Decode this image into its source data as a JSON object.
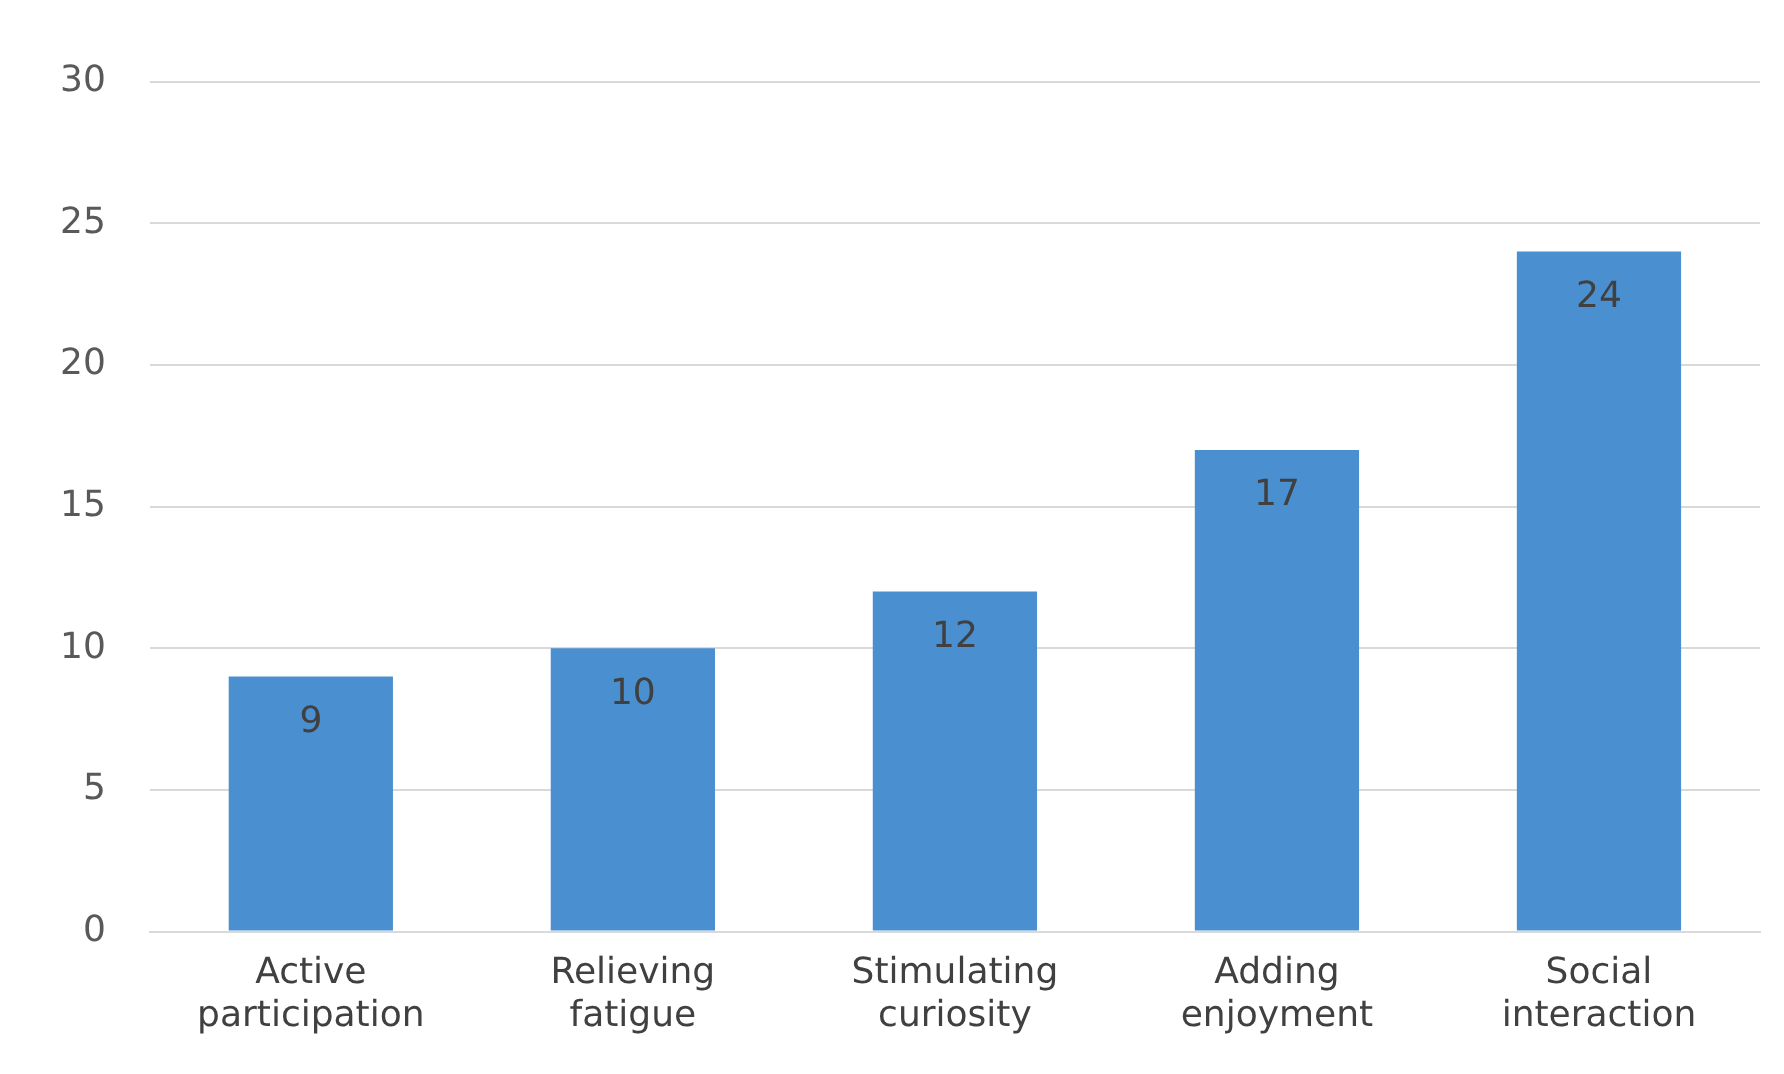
{
  "chart_data": {
    "type": "bar",
    "categories": [
      "Active participation",
      "Relieving fatigue",
      "Stimulating curiosity",
      "Adding enjoyment",
      "Social interaction"
    ],
    "values": [
      9,
      10,
      12,
      17,
      24
    ],
    "color": "#4a8fd0",
    "ylim": [
      0,
      30
    ],
    "yticks": [
      0,
      5,
      10,
      15,
      20,
      25,
      30
    ],
    "grid": "y",
    "data_labels": true
  }
}
